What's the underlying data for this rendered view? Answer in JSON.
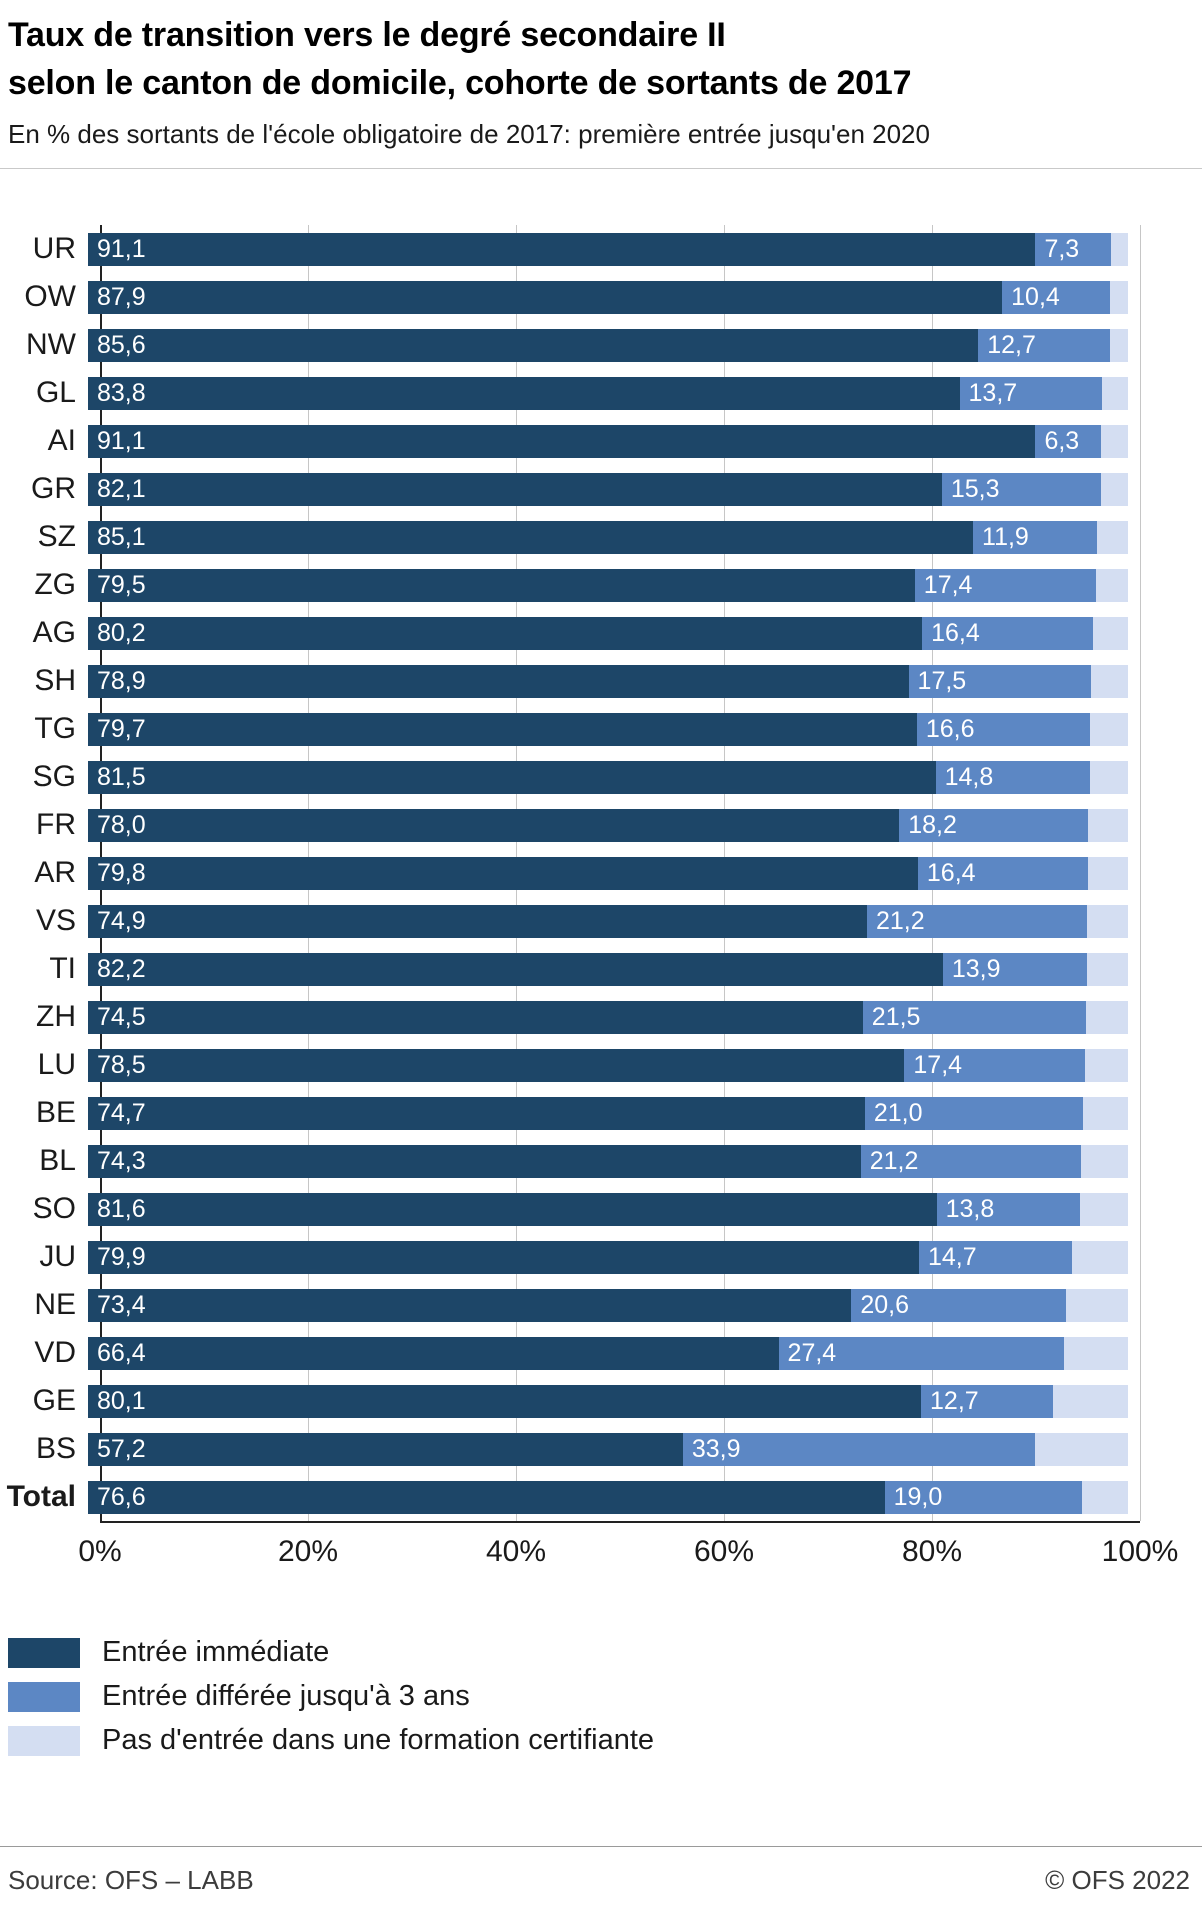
{
  "header": {
    "title_line1": "Taux de transition vers le degré secondaire II",
    "title_line2": "selon le canton de domicile, cohorte de sortants de 2017",
    "subtitle": "En % des sortants de l'école obligatoire de 2017: première entrée jusqu'en 2020"
  },
  "colors": {
    "immediate": "#1d4668",
    "deferred": "#5c87c4",
    "no_entry": "#d4def2",
    "grid": "#c6c6c6",
    "axis": "#222222"
  },
  "chart_data": {
    "type": "bar",
    "orientation": "horizontal",
    "stacked": true,
    "unit": "%",
    "xlim": [
      0,
      100
    ],
    "x_ticks": [
      0,
      20,
      40,
      60,
      80,
      100
    ],
    "x_tick_labels": [
      "0%",
      "20%",
      "40%",
      "60%",
      "80%",
      "100%"
    ],
    "grid": true,
    "legend_position": "bottom-left",
    "decimal_separator": ",",
    "categories": [
      "UR",
      "OW",
      "NW",
      "GL",
      "AI",
      "GR",
      "SZ",
      "ZG",
      "AG",
      "SH",
      "TG",
      "SG",
      "FR",
      "AR",
      "VS",
      "TI",
      "ZH",
      "LU",
      "BE",
      "BL",
      "SO",
      "JU",
      "NE",
      "VD",
      "GE",
      "BS",
      "Total"
    ],
    "series": [
      {
        "name": "Entrée immédiate",
        "color_key": "immediate",
        "show_labels": true,
        "values": [
          91.1,
          87.9,
          85.6,
          83.8,
          91.1,
          82.1,
          85.1,
          79.5,
          80.2,
          78.9,
          79.7,
          81.5,
          78.0,
          79.8,
          74.9,
          82.2,
          74.5,
          78.5,
          74.7,
          74.3,
          81.6,
          79.9,
          73.4,
          66.4,
          80.1,
          57.2,
          76.6
        ]
      },
      {
        "name": "Entrée différée jusqu'à 3 ans",
        "color_key": "deferred",
        "show_labels": true,
        "values": [
          7.3,
          10.4,
          12.7,
          13.7,
          6.3,
          15.3,
          11.9,
          17.4,
          16.4,
          17.5,
          16.6,
          14.8,
          18.2,
          16.4,
          21.2,
          13.9,
          21.5,
          17.4,
          21.0,
          21.2,
          13.8,
          14.7,
          20.6,
          27.4,
          12.7,
          33.9,
          19.0
        ]
      },
      {
        "name": "Pas d'entrée dans une formation certifiante",
        "color_key": "no_entry",
        "show_labels": false,
        "values": [
          1.6,
          1.7,
          1.7,
          2.5,
          2.6,
          2.6,
          3.0,
          3.1,
          3.4,
          3.6,
          3.7,
          3.7,
          3.8,
          3.8,
          3.9,
          3.9,
          4.0,
          4.1,
          4.3,
          4.5,
          4.6,
          5.4,
          6.0,
          6.2,
          7.2,
          8.9,
          4.4
        ]
      }
    ]
  },
  "footer": {
    "source": "Source: OFS – LABB",
    "copyright": "© OFS 2022"
  }
}
